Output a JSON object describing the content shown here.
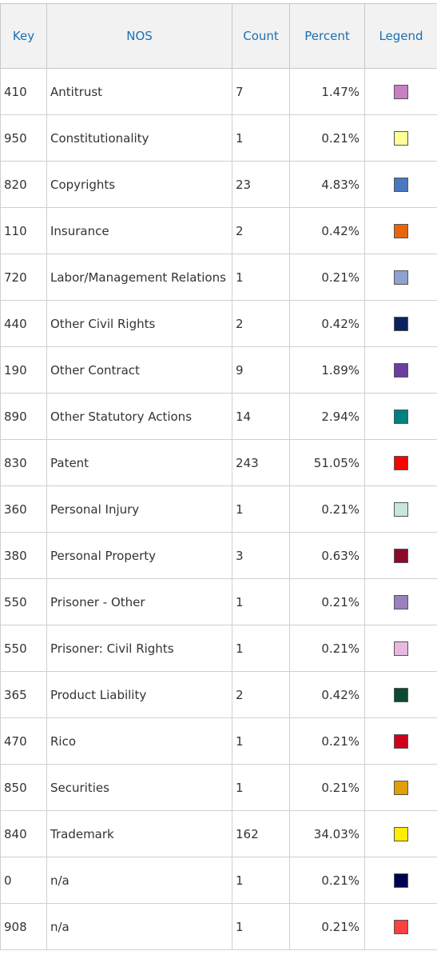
{
  "table": {
    "header": [
      "Key",
      "NOS",
      "Count",
      "Percent",
      "Legend"
    ],
    "rows": [
      {
        "key": "410",
        "nos": "Antitrust",
        "count": 7,
        "percent": "1.47%",
        "color": "#c97fc3"
      },
      {
        "key": "950",
        "nos": "Constitutionality",
        "count": 1,
        "percent": "0.21%",
        "color": "#ffff99"
      },
      {
        "key": "820",
        "nos": "Copyrights",
        "count": 23,
        "percent": "4.83%",
        "color": "#4a78c0"
      },
      {
        "key": "110",
        "nos": "Insurance",
        "count": 2,
        "percent": "0.42%",
        "color": "#e8650e"
      },
      {
        "key": "720",
        "nos": "Labor/Management Relations",
        "count": 1,
        "percent": "0.21%",
        "color": "#8ea2d0"
      },
      {
        "key": "440",
        "nos": "Other Civil Rights",
        "count": 2,
        "percent": "0.42%",
        "color": "#0a2260"
      },
      {
        "key": "190",
        "nos": "Other Contract",
        "count": 9,
        "percent": "1.89%",
        "color": "#6a3fa0"
      },
      {
        "key": "890",
        "nos": "Other Statutory Actions",
        "count": 14,
        "percent": "2.94%",
        "color": "#008080"
      },
      {
        "key": "830",
        "nos": "Patent",
        "count": 243,
        "percent": "51.05%",
        "color": "#ff0000"
      },
      {
        "key": "360",
        "nos": "Personal Injury",
        "count": 1,
        "percent": "0.21%",
        "color": "#c8e6dc"
      },
      {
        "key": "380",
        "nos": "Personal Property",
        "count": 3,
        "percent": "0.63%",
        "color": "#8b0a2a"
      },
      {
        "key": "550",
        "nos": "Prisoner - Other",
        "count": 1,
        "percent": "0.21%",
        "color": "#9b80c0"
      },
      {
        "key": "550",
        "nos": "Prisoner: Civil Rights",
        "count": 1,
        "percent": "0.21%",
        "color": "#e8b8e0"
      },
      {
        "key": "365",
        "nos": "Product Liability",
        "count": 2,
        "percent": "0.42%",
        "color": "#0a4a30"
      },
      {
        "key": "470",
        "nos": "Rico",
        "count": 1,
        "percent": "0.21%",
        "color": "#d0021b"
      },
      {
        "key": "850",
        "nos": "Securities",
        "count": 1,
        "percent": "0.21%",
        "color": "#e0a000"
      },
      {
        "key": "840",
        "nos": "Trademark",
        "count": 162,
        "percent": "34.03%",
        "color": "#ffee00"
      },
      {
        "key": "0",
        "nos": "n/a",
        "count": 1,
        "percent": "0.21%",
        "color": "#000050"
      },
      {
        "key": "908",
        "nos": "n/a",
        "count": 1,
        "percent": "0.21%",
        "color": "#ff4040"
      }
    ]
  }
}
